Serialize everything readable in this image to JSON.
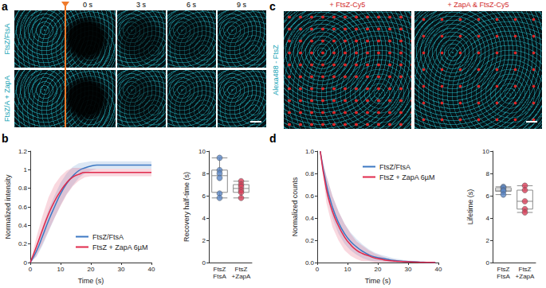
{
  "panel_labels": [
    "a",
    "b",
    "c",
    "d"
  ],
  "panel_a": {
    "rows": [
      "FtsZ/FtsA",
      "FtsZ/A + ZapA"
    ],
    "times": [
      "0 s",
      "3 s",
      "6 s",
      "9 s"
    ]
  },
  "panel_c": {
    "titles": [
      "+ FtsZ-Cy5",
      "+ ZapA & FtsZ-Cy5"
    ],
    "channel": "Alexa488 - FtsZ"
  },
  "chart_data": [
    {
      "type": "line",
      "x_label": "Time (s)",
      "y_label": "Normalized intensity",
      "xlim": [
        0,
        40
      ],
      "xticks": [
        0,
        10,
        20,
        30,
        40
      ],
      "ylim": [
        0,
        1.2
      ],
      "yticks": [
        0,
        0.2,
        0.4,
        0.6,
        0.8,
        1,
        1.2
      ],
      "grid": false,
      "legend": "lower right",
      "x": [
        0,
        2,
        4,
        6,
        8,
        10,
        12,
        14,
        16,
        18,
        20,
        22,
        24,
        26,
        28,
        30,
        32,
        34,
        36,
        38,
        40
      ],
      "series": [
        {
          "name": "FtsZ/FtsA",
          "color": "#3c78c3",
          "values": [
            0,
            0.12,
            0.28,
            0.45,
            0.6,
            0.74,
            0.85,
            0.93,
            0.99,
            1.02,
            1.04,
            1.05,
            1.05,
            1.05,
            1.05,
            1.05,
            1.05,
            1.05,
            1.05,
            1.05,
            1.05
          ],
          "sd": [
            0,
            0.06,
            0.1,
            0.12,
            0.12,
            0.12,
            0.11,
            0.1,
            0.08,
            0.06,
            0.05,
            0.04,
            0.04,
            0.04,
            0.04,
            0.04,
            0.04,
            0.04,
            0.04,
            0.04,
            0.04
          ]
        },
        {
          "name": "FtsZ + ZapA 6µM",
          "color": "#e0294b",
          "values": [
            0,
            0.17,
            0.35,
            0.52,
            0.66,
            0.77,
            0.86,
            0.92,
            0.95,
            0.97,
            0.97,
            0.97,
            0.97,
            0.97,
            0.97,
            0.97,
            0.97,
            0.97,
            0.97,
            0.97,
            0.97
          ],
          "sd": [
            0,
            0.1,
            0.15,
            0.18,
            0.18,
            0.16,
            0.13,
            0.1,
            0.07,
            0.05,
            0.04,
            0.04,
            0.04,
            0.04,
            0.04,
            0.04,
            0.04,
            0.04,
            0.04,
            0.04,
            0.04
          ]
        }
      ]
    },
    {
      "type": "boxplot",
      "y_label": "Recovery half-time (s)",
      "ylim": [
        0,
        10
      ],
      "yticks": [
        0,
        2,
        4,
        6,
        8,
        10
      ],
      "grid": false,
      "categories": [
        "FtsZ\nFtsA",
        "FtsZ\n+ZapA"
      ],
      "colors": [
        "#5a86c5",
        "#d9405a"
      ],
      "box": [
        [
          5.8,
          6.3,
          7.8,
          8.3,
          9.4
        ],
        [
          5.8,
          6.3,
          6.65,
          7.0,
          7.3
        ]
      ],
      "points": [
        [
          9.4,
          8.3,
          8.0,
          7.6,
          6.2,
          5.8
        ],
        [
          7.3,
          7.0,
          6.8,
          6.5,
          6.3,
          5.8
        ]
      ]
    },
    {
      "type": "line",
      "x_label": "Time (s)",
      "y_label": "Normalized counts",
      "xlim": [
        0,
        40
      ],
      "xticks": [
        0,
        10,
        20,
        30,
        40
      ],
      "ylim": [
        0,
        1
      ],
      "yticks": [
        {
          "value": 0,
          "label": "0.0"
        },
        0.2,
        0.4,
        0.6,
        0.8,
        {
          "value": 1,
          "label": "1.0"
        }
      ],
      "grid": false,
      "legend": "upper right",
      "x": [
        1,
        3,
        5,
        7,
        9,
        11,
        13,
        15,
        17,
        19,
        21,
        23,
        25,
        27,
        29,
        31,
        33,
        35,
        37,
        39
      ],
      "series": [
        {
          "name": "FtsZ/FtsA",
          "color": "#3c78c3",
          "values": [
            1,
            0.7,
            0.5,
            0.36,
            0.26,
            0.19,
            0.14,
            0.1,
            0.07,
            0.05,
            0.04,
            0.03,
            0.02,
            0.015,
            0.01,
            0.008,
            0.005,
            0.003,
            0.002,
            0.001
          ],
          "sd": [
            0,
            0.08,
            0.1,
            0.1,
            0.09,
            0.08,
            0.07,
            0.06,
            0.05,
            0.04,
            0.03,
            0.025,
            0.02,
            0.015,
            0.01,
            0.008,
            0.005,
            0.003,
            0.002,
            0.001
          ]
        },
        {
          "name": "FtsZ + ZapA 6µM",
          "color": "#e0294b",
          "values": [
            1,
            0.66,
            0.46,
            0.33,
            0.23,
            0.16,
            0.11,
            0.08,
            0.06,
            0.04,
            0.03,
            0.02,
            0.015,
            0.01,
            0.008,
            0.005,
            0.003,
            0.002,
            0.001,
            0
          ],
          "sd": [
            0,
            0.12,
            0.14,
            0.13,
            0.12,
            0.1,
            0.08,
            0.07,
            0.05,
            0.04,
            0.03,
            0.02,
            0.015,
            0.01,
            0.008,
            0.005,
            0.003,
            0.002,
            0.001,
            0
          ]
        }
      ]
    },
    {
      "type": "boxplot",
      "y_label": "Lifetime (s)",
      "ylim": [
        0,
        10
      ],
      "yticks": [
        0,
        2,
        4,
        6,
        8,
        10
      ],
      "grid": false,
      "categories": [
        "FtsZ\nFtsA",
        "FtsZ\n+ZapA"
      ],
      "colors": [
        "#5a86c5",
        "#d9405a"
      ],
      "box": [
        [
          6.1,
          6.4,
          6.5,
          6.7,
          6.8
        ],
        [
          4.5,
          4.8,
          5.5,
          6.5,
          6.9
        ]
      ],
      "points": [
        [
          6.8,
          6.7,
          6.5,
          6.4,
          6.1
        ],
        [
          6.9,
          6.5,
          5.5,
          4.8,
          4.5
        ]
      ]
    }
  ]
}
